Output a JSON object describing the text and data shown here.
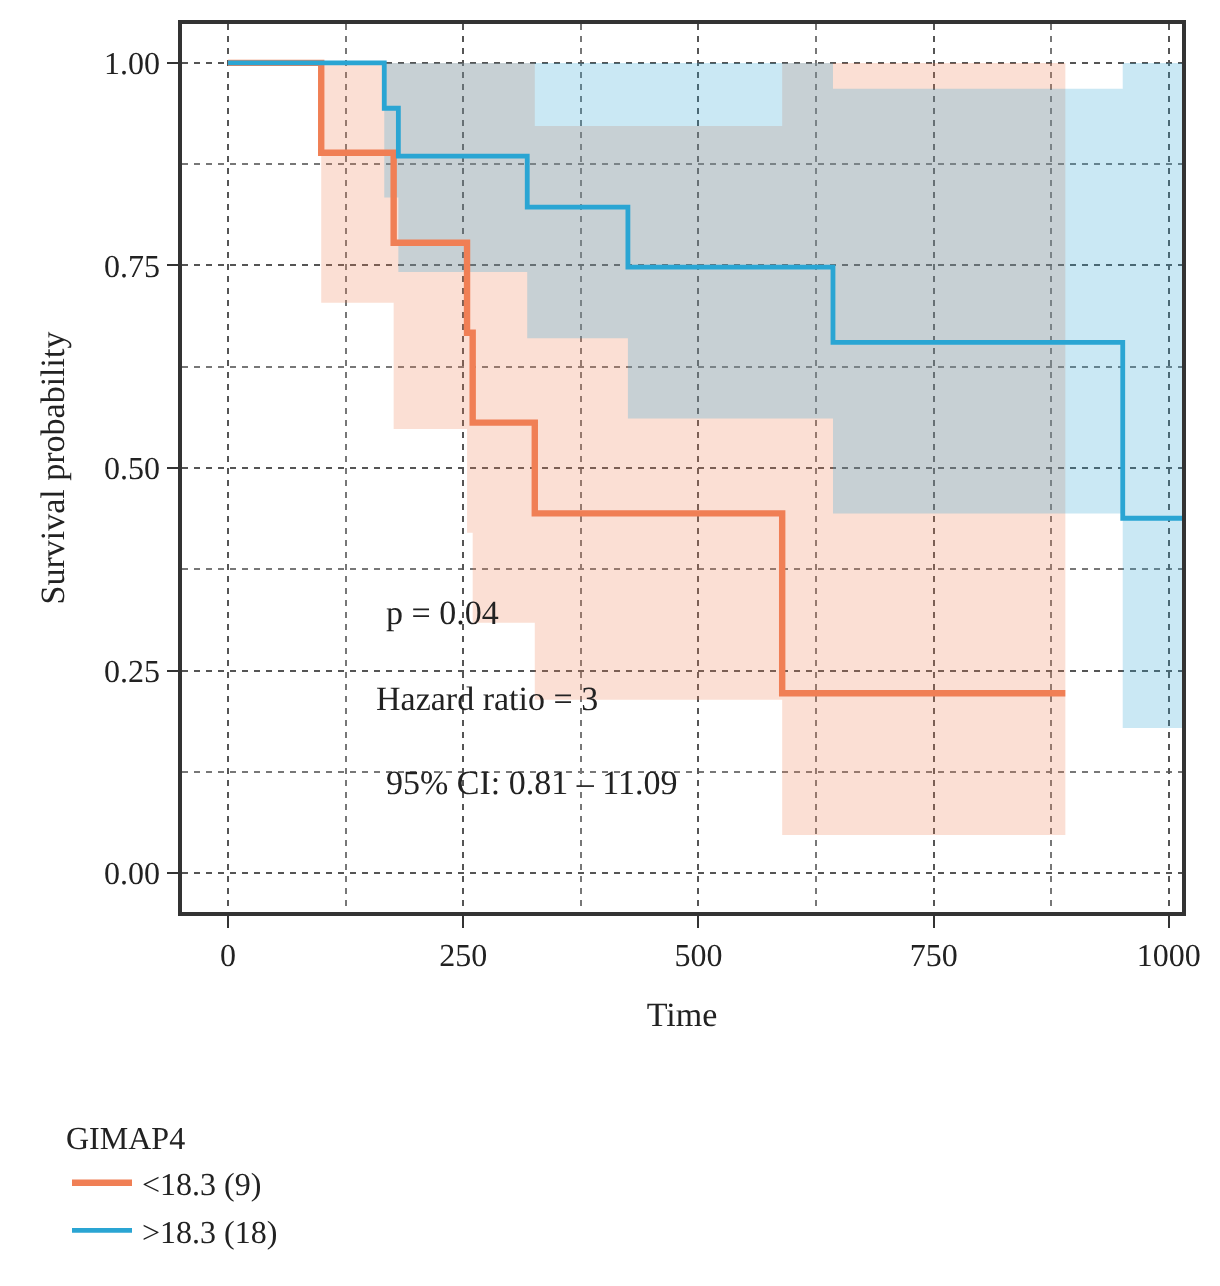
{
  "chart_data": {
    "type": "step",
    "xlabel": "Time",
    "ylabel": "Survival probability",
    "legend_title": "GIMAP4",
    "xlim": [
      -49,
      1014
    ],
    "ylim": [
      -0.048,
      1.048
    ],
    "xticks": [
      0,
      250,
      500,
      750,
      1000
    ],
    "yticks": [
      {
        "value": 0,
        "label": "0.00"
      },
      {
        "value": 0.25,
        "label": "0.25"
      },
      {
        "value": 0.5,
        "label": "0.50"
      },
      {
        "value": 0.75,
        "label": "0.75"
      },
      {
        "value": 1,
        "label": "1.00"
      }
    ],
    "grid": true,
    "legend": "bottom left",
    "marker": "none",
    "line_style": "solid",
    "series": [
      {
        "name": "<18.3 (9)",
        "color": "#f07f55",
        "x": [
          0,
          99,
          176,
          254,
          260,
          326,
          589,
          890
        ],
        "values": [
          1,
          0.889,
          0.778,
          0.667,
          0.556,
          0.444,
          0.222,
          0.222
        ],
        "lower": [
          null,
          0.704,
          0.548,
          0.42,
          0.309,
          0.214,
          0.047,
          0.047
        ],
        "upper": [
          null,
          1,
          1,
          1,
          1,
          0.922,
          1,
          1
        ]
      },
      {
        "name": ">18.3 (18)",
        "color": "#2aa5d3",
        "x": [
          0,
          166,
          181,
          318,
          425,
          643,
          951,
          1014
        ],
        "values": [
          1,
          0.944,
          0.885,
          0.822,
          0.748,
          0.655,
          0.438,
          0.438
        ],
        "lower": [
          null,
          0.834,
          0.742,
          0.66,
          0.561,
          0.444,
          0.179,
          0.179
        ],
        "upper": [
          null,
          1,
          1,
          1,
          1,
          0.968,
          1,
          1
        ]
      }
    ],
    "annotations": [
      "p = 0.04",
      "Hazard ratio = 3",
      "95% CI: 0.81 – 11.09"
    ]
  }
}
